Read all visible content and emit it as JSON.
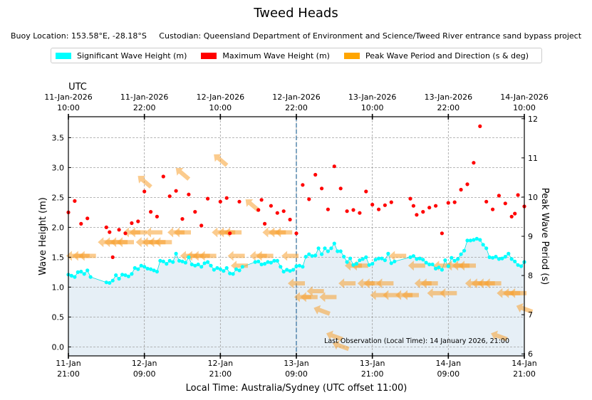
{
  "title": "Tweed Heads",
  "subtitle": "Buoy Location: 153.58°E, -28.18°S     Custodian: Queensland Department of Environment and Science/Tweed River entrance sand bypass project",
  "legend": [
    {
      "label": "Significant Wave Height (m)",
      "color": "#00ffff"
    },
    {
      "label": "Maximum Wave Height (m)",
      "color": "#ff0000"
    },
    {
      "label": "Peak Wave Period and Direction (s & deg)",
      "color": "#ffa500"
    }
  ],
  "chart_data": {
    "type": "scatter",
    "title": "Tweed Heads",
    "xlabel": "Local Time: Australia/Sydney (UTC offset 11:00)",
    "ylabel": "Wave Height (m)",
    "y2label": "Peak Wave Period (s)",
    "top_axis_label": "UTC",
    "x_range_hours": [
      0,
      72
    ],
    "ylim": [
      -0.15,
      3.85
    ],
    "y2lim": [
      5.95,
      12.05
    ],
    "yticks": [
      "0.0",
      "0.5",
      "1.0",
      "1.5",
      "2.0",
      "2.5",
      "3.0",
      "3.5"
    ],
    "y2ticks": [
      "6",
      "7",
      "8",
      "9",
      "10",
      "11",
      "12"
    ],
    "bottom_ticks": [
      {
        "h": 0,
        "l1": "11-Jan",
        "l2": "21:00"
      },
      {
        "h": 12,
        "l1": "12-Jan",
        "l2": "09:00"
      },
      {
        "h": 24,
        "l1": "12-Jan",
        "l2": "21:00"
      },
      {
        "h": 36,
        "l1": "13-Jan",
        "l2": "09:00"
      },
      {
        "h": 48,
        "l1": "13-Jan",
        "l2": "21:00"
      },
      {
        "h": 60,
        "l1": "14-Jan",
        "l2": "09:00"
      },
      {
        "h": 72,
        "l1": "14-Jan",
        "l2": "21:00"
      }
    ],
    "top_ticks": [
      {
        "h": 0,
        "l1": "11-Jan-2026",
        "l2": "10:00"
      },
      {
        "h": 12,
        "l1": "11-Jan-2026",
        "l2": "22:00"
      },
      {
        "h": 24,
        "l1": "12-Jan-2026",
        "l2": "10:00"
      },
      {
        "h": 36,
        "l1": "12-Jan-2026",
        "l2": "22:00"
      },
      {
        "h": 48,
        "l1": "13-Jan-2026",
        "l2": "10:00"
      },
      {
        "h": 60,
        "l1": "13-Jan-2026",
        "l2": "22:00"
      },
      {
        "h": 72,
        "l1": "14-Jan-2026",
        "l2": "10:00"
      }
    ],
    "marker_hour": 36,
    "annotation": "Last Observation (Local Time): 14 January 2026, 21:00",
    "series": [
      {
        "name": "Significant Wave Height (m)",
        "color": "#00ffff",
        "points": [
          [
            0,
            1.21
          ],
          [
            0.5,
            1.19
          ],
          [
            1,
            1.17
          ],
          [
            1.5,
            1.25
          ],
          [
            2,
            1.26
          ],
          [
            2.5,
            1.22
          ],
          [
            3,
            1.28
          ],
          [
            3.5,
            1.17
          ],
          [
            6,
            1.08
          ],
          [
            6.5,
            1.07
          ],
          [
            7,
            1.11
          ],
          [
            7.5,
            1.2
          ],
          [
            8,
            1.14
          ],
          [
            8.5,
            1.21
          ],
          [
            9,
            1.2
          ],
          [
            9.5,
            1.18
          ],
          [
            10,
            1.22
          ],
          [
            10.5,
            1.32
          ],
          [
            11,
            1.3
          ],
          [
            11.5,
            1.36
          ],
          [
            12,
            1.34
          ],
          [
            12.5,
            1.31
          ],
          [
            13,
            1.3
          ],
          [
            13.5,
            1.28
          ],
          [
            14,
            1.26
          ],
          [
            14.5,
            1.44
          ],
          [
            15,
            1.43
          ],
          [
            15.5,
            1.39
          ],
          [
            16,
            1.44
          ],
          [
            16.5,
            1.42
          ],
          [
            17,
            1.56
          ],
          [
            17.5,
            1.44
          ],
          [
            18,
            1.43
          ],
          [
            18.5,
            1.41
          ],
          [
            19,
            1.5
          ],
          [
            19.5,
            1.38
          ],
          [
            20,
            1.36
          ],
          [
            20.5,
            1.38
          ],
          [
            21,
            1.34
          ],
          [
            21.5,
            1.4
          ],
          [
            22,
            1.42
          ],
          [
            22.5,
            1.36
          ],
          [
            23,
            1.29
          ],
          [
            23.5,
            1.32
          ],
          [
            24,
            1.3
          ],
          [
            24.5,
            1.27
          ],
          [
            25,
            1.32
          ],
          [
            25.5,
            1.23
          ],
          [
            26,
            1.22
          ],
          [
            26.5,
            1.3
          ],
          [
            27,
            1.28
          ],
          [
            27.5,
            1.34
          ],
          [
            29.5,
            1.42
          ],
          [
            30,
            1.43
          ],
          [
            30.5,
            1.38
          ],
          [
            31,
            1.39
          ],
          [
            31.5,
            1.42
          ],
          [
            32,
            1.41
          ],
          [
            32.5,
            1.44
          ],
          [
            33,
            1.44
          ],
          [
            33.5,
            1.34
          ],
          [
            34,
            1.26
          ],
          [
            34.5,
            1.29
          ],
          [
            35,
            1.27
          ],
          [
            35.5,
            1.29
          ],
          [
            36,
            1.35
          ],
          [
            36.5,
            1.36
          ],
          [
            37,
            1.34
          ],
          [
            37.5,
            1.51
          ],
          [
            38,
            1.55
          ],
          [
            38.5,
            1.52
          ],
          [
            39,
            1.53
          ],
          [
            39.5,
            1.65
          ],
          [
            40,
            1.55
          ],
          [
            40.5,
            1.65
          ],
          [
            41,
            1.6
          ],
          [
            41.5,
            1.65
          ],
          [
            42,
            1.73
          ],
          [
            42.5,
            1.6
          ],
          [
            43,
            1.6
          ],
          [
            43.5,
            1.51
          ],
          [
            44,
            1.42
          ],
          [
            44.5,
            1.48
          ],
          [
            45,
            1.37
          ],
          [
            45.5,
            1.39
          ],
          [
            46,
            1.45
          ],
          [
            46.5,
            1.47
          ],
          [
            47,
            1.5
          ],
          [
            47.5,
            1.37
          ],
          [
            48,
            1.39
          ],
          [
            48.5,
            1.46
          ],
          [
            49,
            1.48
          ],
          [
            49.5,
            1.48
          ],
          [
            50,
            1.45
          ],
          [
            50.5,
            1.56
          ],
          [
            51,
            1.4
          ],
          [
            51.5,
            1.43
          ],
          [
            54,
            1.5
          ],
          [
            54.5,
            1.52
          ],
          [
            55,
            1.47
          ],
          [
            55.5,
            1.48
          ],
          [
            56,
            1.46
          ],
          [
            56.5,
            1.41
          ],
          [
            57,
            1.38
          ],
          [
            57.5,
            1.38
          ],
          [
            58,
            1.31
          ],
          [
            58.5,
            1.33
          ],
          [
            59,
            1.29
          ],
          [
            59.5,
            1.45
          ],
          [
            60,
            1.35
          ],
          [
            60.5,
            1.49
          ],
          [
            61,
            1.44
          ],
          [
            61.5,
            1.47
          ],
          [
            62,
            1.55
          ],
          [
            62.5,
            1.61
          ],
          [
            63,
            1.78
          ],
          [
            63.5,
            1.78
          ],
          [
            64,
            1.79
          ],
          [
            64.5,
            1.81
          ],
          [
            65,
            1.79
          ],
          [
            65.5,
            1.71
          ],
          [
            66,
            1.65
          ],
          [
            66.5,
            1.5
          ],
          [
            67,
            1.49
          ],
          [
            67.5,
            1.51
          ],
          [
            68,
            1.47
          ],
          [
            68.5,
            1.48
          ],
          [
            69,
            1.51
          ],
          [
            69.5,
            1.56
          ],
          [
            70,
            1.47
          ],
          [
            70.5,
            1.43
          ],
          [
            71,
            1.37
          ],
          [
            71.5,
            1.35
          ],
          [
            72,
            1.42
          ]
        ]
      },
      {
        "name": "Maximum Wave Height (m)",
        "color": "#ff0000",
        "points": [
          [
            0,
            2.25
          ],
          [
            1,
            2.44
          ],
          [
            2,
            2.06
          ],
          [
            3,
            2.15
          ],
          [
            6,
            2.0
          ],
          [
            6.5,
            1.92
          ],
          [
            7,
            1.5
          ],
          [
            8,
            1.96
          ],
          [
            9,
            1.9
          ],
          [
            10,
            2.07
          ],
          [
            11,
            2.1
          ],
          [
            12,
            2.6
          ],
          [
            13,
            2.26
          ],
          [
            14,
            2.18
          ],
          [
            15,
            2.85
          ],
          [
            16,
            2.52
          ],
          [
            17,
            2.61
          ],
          [
            18,
            2.14
          ],
          [
            19,
            2.55
          ],
          [
            20,
            2.26
          ],
          [
            21,
            2.03
          ],
          [
            22,
            2.48
          ],
          [
            24,
            2.43
          ],
          [
            25,
            2.49
          ],
          [
            25.5,
            1.9
          ],
          [
            27,
            2.43
          ],
          [
            30,
            2.29
          ],
          [
            30.5,
            2.46
          ],
          [
            31,
            2.06
          ],
          [
            32,
            2.36
          ],
          [
            33,
            2.24
          ],
          [
            34,
            2.27
          ],
          [
            35,
            2.13
          ],
          [
            36,
            1.9
          ],
          [
            37,
            2.71
          ],
          [
            38,
            2.47
          ],
          [
            39,
            2.88
          ],
          [
            40,
            2.65
          ],
          [
            41,
            2.3
          ],
          [
            42,
            3.02
          ],
          [
            43,
            2.65
          ],
          [
            44,
            2.27
          ],
          [
            45,
            2.29
          ],
          [
            46,
            2.24
          ],
          [
            47,
            2.6
          ],
          [
            48,
            2.38
          ],
          [
            49,
            2.3
          ],
          [
            50,
            2.37
          ],
          [
            51,
            2.42
          ],
          [
            54,
            2.48
          ],
          [
            54.5,
            2.36
          ],
          [
            55,
            2.21
          ],
          [
            56,
            2.26
          ],
          [
            57,
            2.33
          ],
          [
            58,
            2.36
          ],
          [
            59,
            1.9
          ],
          [
            60,
            2.41
          ],
          [
            61,
            2.42
          ],
          [
            62,
            2.63
          ],
          [
            63,
            2.72
          ],
          [
            64,
            3.08
          ],
          [
            65,
            3.69
          ],
          [
            66,
            2.43
          ],
          [
            67,
            2.3
          ],
          [
            68,
            2.53
          ],
          [
            69,
            2.4
          ],
          [
            70,
            2.18
          ],
          [
            70.5,
            2.23
          ],
          [
            71,
            2.54
          ],
          [
            72,
            2.35
          ]
        ]
      },
      {
        "name": "Peak Wave Period and Direction (s & deg)",
        "color": "#ffa500",
        "points": [
          [
            1,
            8.5
          ],
          [
            2,
            8.5
          ],
          [
            3,
            8.5
          ],
          [
            6,
            8.85
          ],
          [
            7,
            8.85
          ],
          [
            8,
            8.85
          ],
          [
            9,
            8.85
          ],
          [
            10,
            9.1
          ],
          [
            11,
            9.1
          ],
          [
            12,
            8.85
          ],
          [
            13,
            8.85
          ],
          [
            14,
            8.85
          ],
          [
            15,
            8.85
          ],
          [
            13.5,
            9.1
          ],
          [
            17,
            9.1
          ],
          [
            18,
            9.1
          ],
          [
            19,
            8.5
          ],
          [
            20,
            8.5
          ],
          [
            21,
            8.5
          ],
          [
            22,
            8.5
          ],
          [
            24,
            9.1
          ],
          [
            25,
            9.1
          ],
          [
            26,
            9.1
          ],
          [
            26.5,
            8.5
          ],
          [
            27,
            8.25
          ],
          [
            30,
            8.5
          ],
          [
            31,
            8.5
          ],
          [
            32,
            9.1
          ],
          [
            33,
            9.1
          ],
          [
            34,
            9.1
          ],
          [
            35,
            8.5
          ],
          [
            36,
            7.8
          ],
          [
            37,
            7.45
          ],
          [
            38,
            7.45
          ],
          [
            39,
            7.6
          ],
          [
            40,
            7.1
          ],
          [
            41,
            7.45
          ],
          [
            42,
            6.45
          ],
          [
            43,
            6.2
          ],
          [
            44,
            7.8
          ],
          [
            45,
            8.25
          ],
          [
            46,
            8.25
          ],
          [
            47,
            7.8
          ],
          [
            48,
            7.8
          ],
          [
            49,
            7.5
          ],
          [
            50,
            7.8
          ],
          [
            51,
            7.5
          ],
          [
            52,
            8.5
          ],
          [
            53,
            7.5
          ],
          [
            54,
            7.5
          ],
          [
            55,
            8.25
          ],
          [
            56,
            7.8
          ],
          [
            57,
            7.8
          ],
          [
            58,
            7.55
          ],
          [
            59,
            8.25
          ],
          [
            60,
            7.55
          ],
          [
            61,
            8.25
          ],
          [
            62,
            8.25
          ],
          [
            63,
            8.25
          ],
          [
            64,
            7.8
          ],
          [
            65,
            7.8
          ],
          [
            66,
            7.8
          ],
          [
            67,
            7.8
          ],
          [
            68,
            6.45
          ],
          [
            69,
            7.55
          ],
          [
            70,
            7.55
          ],
          [
            71,
            7.55
          ],
          [
            72,
            7.15
          ],
          [
            29,
            9.8
          ],
          [
            12,
            10.4
          ],
          [
            24,
            10.95
          ],
          [
            18,
            10.6
          ]
        ]
      }
    ]
  }
}
